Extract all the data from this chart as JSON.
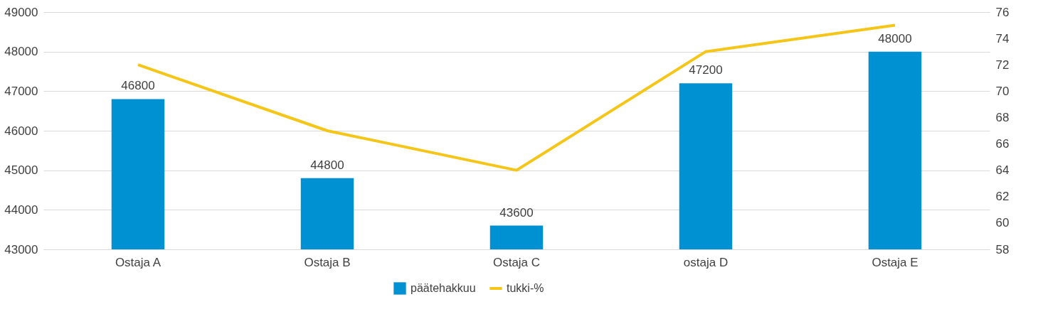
{
  "chart_data": {
    "type": "bar",
    "categories": [
      "Ostaja A",
      "Ostaja B",
      "Ostaja C",
      "ostaja D",
      "Ostaja E"
    ],
    "series": [
      {
        "name": "päätehakkuu",
        "color": "#0091d2",
        "values": [
          46800,
          44800,
          43600,
          47200,
          48000
        ],
        "value_labels": [
          "46800",
          "44800",
          "43600",
          "47200",
          "48000"
        ]
      },
      {
        "name": "tukki-%",
        "type": "line",
        "axis": "y2",
        "color": "#f5c518",
        "values": [
          72,
          67,
          64,
          73,
          75
        ]
      }
    ],
    "ylim": [
      43000,
      49000
    ],
    "yticks": [
      43000,
      44000,
      45000,
      46000,
      47000,
      48000,
      49000
    ],
    "y2lim": [
      58,
      76
    ],
    "y2ticks": [
      58,
      60,
      62,
      64,
      66,
      68,
      70,
      72,
      74,
      76
    ],
    "grid": "y",
    "legend": "bottom",
    "marker": "none",
    "line_style": "solid"
  }
}
